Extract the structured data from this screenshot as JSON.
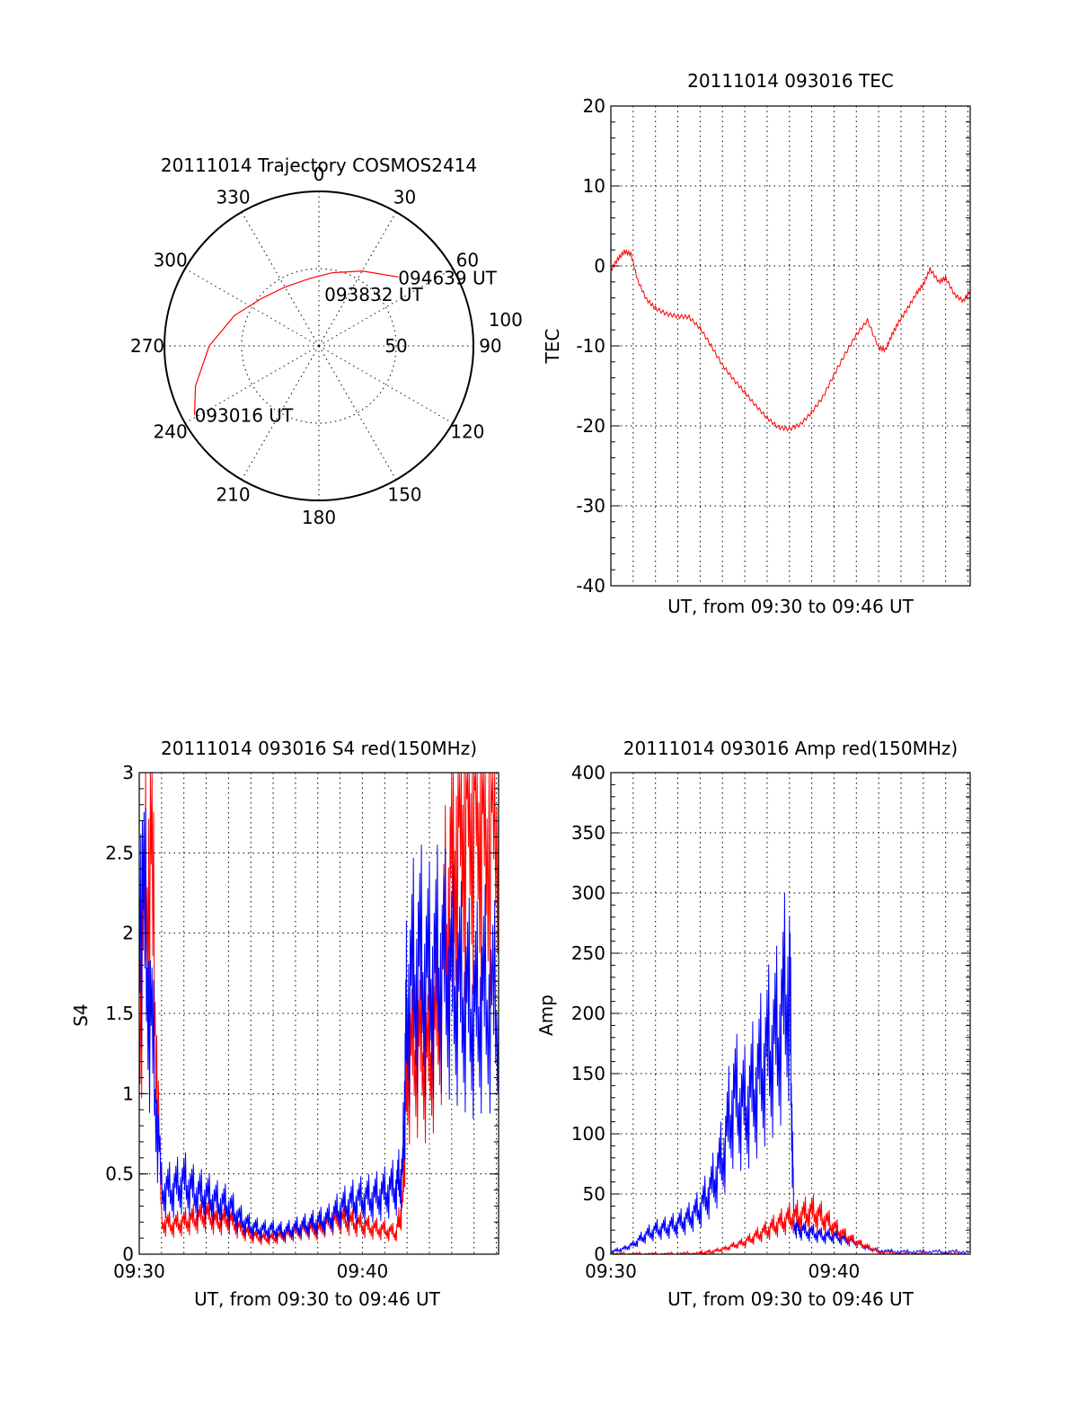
{
  "chart_data": [
    {
      "id": "trajectory",
      "type": "polar",
      "title": "20111014 Trajectory COSMOS2414",
      "azimuth_labels": [
        "0",
        "30",
        "60",
        "90",
        "120",
        "150",
        "180",
        "210",
        "240",
        "270",
        "300",
        "330"
      ],
      "radius_labels": [
        "50",
        "100"
      ],
      "rlim": [
        0,
        100
      ],
      "grid": true,
      "color": "#ff0000",
      "points": [
        [
          241,
          92
        ],
        [
          252,
          84
        ],
        [
          270,
          71
        ],
        [
          290,
          58
        ],
        [
          310,
          48
        ],
        [
          330,
          44
        ],
        [
          352,
          44
        ],
        [
          10,
          48
        ],
        [
          30,
          56
        ],
        [
          49,
          68
        ]
      ],
      "annotations": [
        {
          "text": "093016 UT",
          "az": 241,
          "r": 92
        },
        {
          "text": "093832 UT",
          "az": 6,
          "r": 34
        },
        {
          "text": "094639 UT",
          "az": 49,
          "r": 68
        }
      ]
    },
    {
      "id": "tec",
      "type": "line",
      "title": "20111014 093016 TEC",
      "xlabel": "UT, from 09:30 to 09:46 UT",
      "ylabel": "TEC",
      "xlim": [
        0,
        16.1
      ],
      "ylim": [
        -40,
        20
      ],
      "yticks": [
        "20",
        "10",
        "0",
        "-10",
        "-20",
        "-30",
        "-40"
      ],
      "grid": true,
      "series": [
        {
          "color": "#ff0000",
          "x": [
            0,
            0.3,
            0.6,
            0.9,
            1.2,
            1.6,
            2.0,
            2.5,
            3.0,
            3.5,
            4.0,
            4.5,
            5.0,
            5.5,
            6.0,
            6.5,
            7.0,
            7.5,
            8.0,
            8.5,
            9.0,
            9.5,
            10.0,
            10.5,
            11.0,
            11.5,
            12.0,
            12.3,
            12.6,
            12.9,
            13.3,
            13.7,
            14.0,
            14.3,
            14.7,
            15.0,
            15.4,
            15.8,
            16.1
          ],
          "y": [
            -0.5,
            0.8,
            1.8,
            1.5,
            -1.8,
            -4.2,
            -5.3,
            -6.0,
            -6.3,
            -6.4,
            -7.8,
            -10.0,
            -12.4,
            -14.2,
            -15.8,
            -17.5,
            -19.0,
            -20.2,
            -20.4,
            -19.8,
            -18.3,
            -16.4,
            -13.6,
            -11.0,
            -8.6,
            -6.8,
            -10.2,
            -10.5,
            -8.6,
            -7.0,
            -5.3,
            -3.4,
            -2.3,
            -0.4,
            -2.0,
            -1.5,
            -3.6,
            -4.4,
            -3.0
          ]
        }
      ]
    },
    {
      "id": "s4",
      "type": "line",
      "title": "20111014 093016 S4 red(150MHz)",
      "xlabel": "UT, from 09:30 to 09:46 UT",
      "ylabel": "S4",
      "xticks": [
        "09:30",
        "09:40"
      ],
      "xlim": [
        0,
        16.1
      ],
      "ylim": [
        0,
        3
      ],
      "yticks": [
        "0",
        "0.5",
        "1",
        "1.5",
        "2",
        "2.5",
        "3"
      ],
      "grid": true,
      "series": [
        {
          "color": "#ff0000",
          "x": [
            0,
            0.5,
            1.0,
            1.5,
            2.0,
            2.5,
            3.0,
            3.5,
            4.0,
            4.5,
            5.0,
            5.5,
            6.0,
            6.5,
            7.0,
            7.5,
            8.0,
            8.5,
            9.0,
            9.5,
            10.0,
            10.5,
            11.0,
            11.5,
            11.8,
            12.0,
            12.5,
            13.0,
            13.5,
            14.0,
            14.5,
            15.0,
            15.5,
            16.1
          ],
          "y": [
            1.5,
            2.6,
            0.2,
            0.18,
            0.2,
            0.22,
            0.25,
            0.2,
            0.22,
            0.16,
            0.12,
            0.1,
            0.1,
            0.12,
            0.14,
            0.16,
            0.15,
            0.2,
            0.22,
            0.2,
            0.18,
            0.16,
            0.15,
            0.13,
            0.3,
            1.2,
            1.3,
            1.2,
            1.6,
            2.4,
            2.8,
            2.9,
            2.7,
            2.8
          ]
        },
        {
          "color": "#0000ff",
          "x": [
            0,
            0.5,
            1.0,
            1.5,
            2.0,
            2.5,
            3.0,
            3.5,
            4.0,
            4.5,
            5.0,
            5.5,
            6.0,
            6.5,
            7.0,
            7.5,
            8.0,
            8.5,
            9.0,
            9.5,
            10.0,
            10.5,
            11.0,
            11.5,
            11.8,
            12.0,
            12.5,
            13.0,
            13.5,
            14.0,
            14.5,
            15.0,
            15.5,
            16.1
          ],
          "y": [
            2.5,
            1.5,
            0.4,
            0.4,
            0.45,
            0.38,
            0.36,
            0.32,
            0.3,
            0.22,
            0.17,
            0.15,
            0.15,
            0.14,
            0.16,
            0.18,
            0.2,
            0.22,
            0.28,
            0.32,
            0.34,
            0.35,
            0.38,
            0.42,
            0.5,
            1.6,
            1.8,
            1.7,
            1.8,
            1.7,
            1.6,
            1.5,
            1.6,
            1.5
          ]
        }
      ]
    },
    {
      "id": "amp",
      "type": "line",
      "title": "20111014 093016 Amp red(150MHz)",
      "xlabel": "UT, from 09:30 to 09:46 UT",
      "ylabel": "Amp",
      "xticks": [
        "09:30",
        "09:40"
      ],
      "xlim": [
        0,
        16.1
      ],
      "ylim": [
        0,
        400
      ],
      "yticks": [
        "0",
        "50",
        "100",
        "150",
        "200",
        "250",
        "300",
        "350",
        "400"
      ],
      "grid": true,
      "series": [
        {
          "color": "#0000ff",
          "x": [
            0,
            0.5,
            1.0,
            1.5,
            2.0,
            2.5,
            3.0,
            3.5,
            4.0,
            4.5,
            5.0,
            5.5,
            6.0,
            6.5,
            7.0,
            7.5,
            8.0,
            8.2,
            8.5,
            9.0,
            9.5,
            10.0,
            10.5,
            11.0,
            11.5,
            12.0,
            13.0,
            14.0,
            15.0,
            16.1
          ],
          "y": [
            2,
            4,
            8,
            15,
            20,
            22,
            25,
            30,
            38,
            55,
            80,
            130,
            120,
            140,
            165,
            180,
            230,
            25,
            20,
            18,
            15,
            15,
            12,
            10,
            5,
            3,
            2,
            2,
            2,
            2
          ]
        },
        {
          "color": "#ff0000",
          "x": [
            0,
            1,
            2,
            3,
            4,
            4.5,
            5.0,
            5.5,
            6.0,
            6.5,
            7.0,
            7.5,
            8.0,
            8.5,
            9.0,
            9.5,
            10.0,
            10.5,
            11.0,
            11.5,
            12.0,
            13.0,
            14.0,
            16.1
          ],
          "y": [
            0,
            0,
            0,
            0,
            1,
            2,
            4,
            7,
            10,
            15,
            20,
            25,
            30,
            32,
            35,
            30,
            22,
            15,
            10,
            6,
            2,
            0,
            0,
            0
          ]
        }
      ]
    }
  ]
}
